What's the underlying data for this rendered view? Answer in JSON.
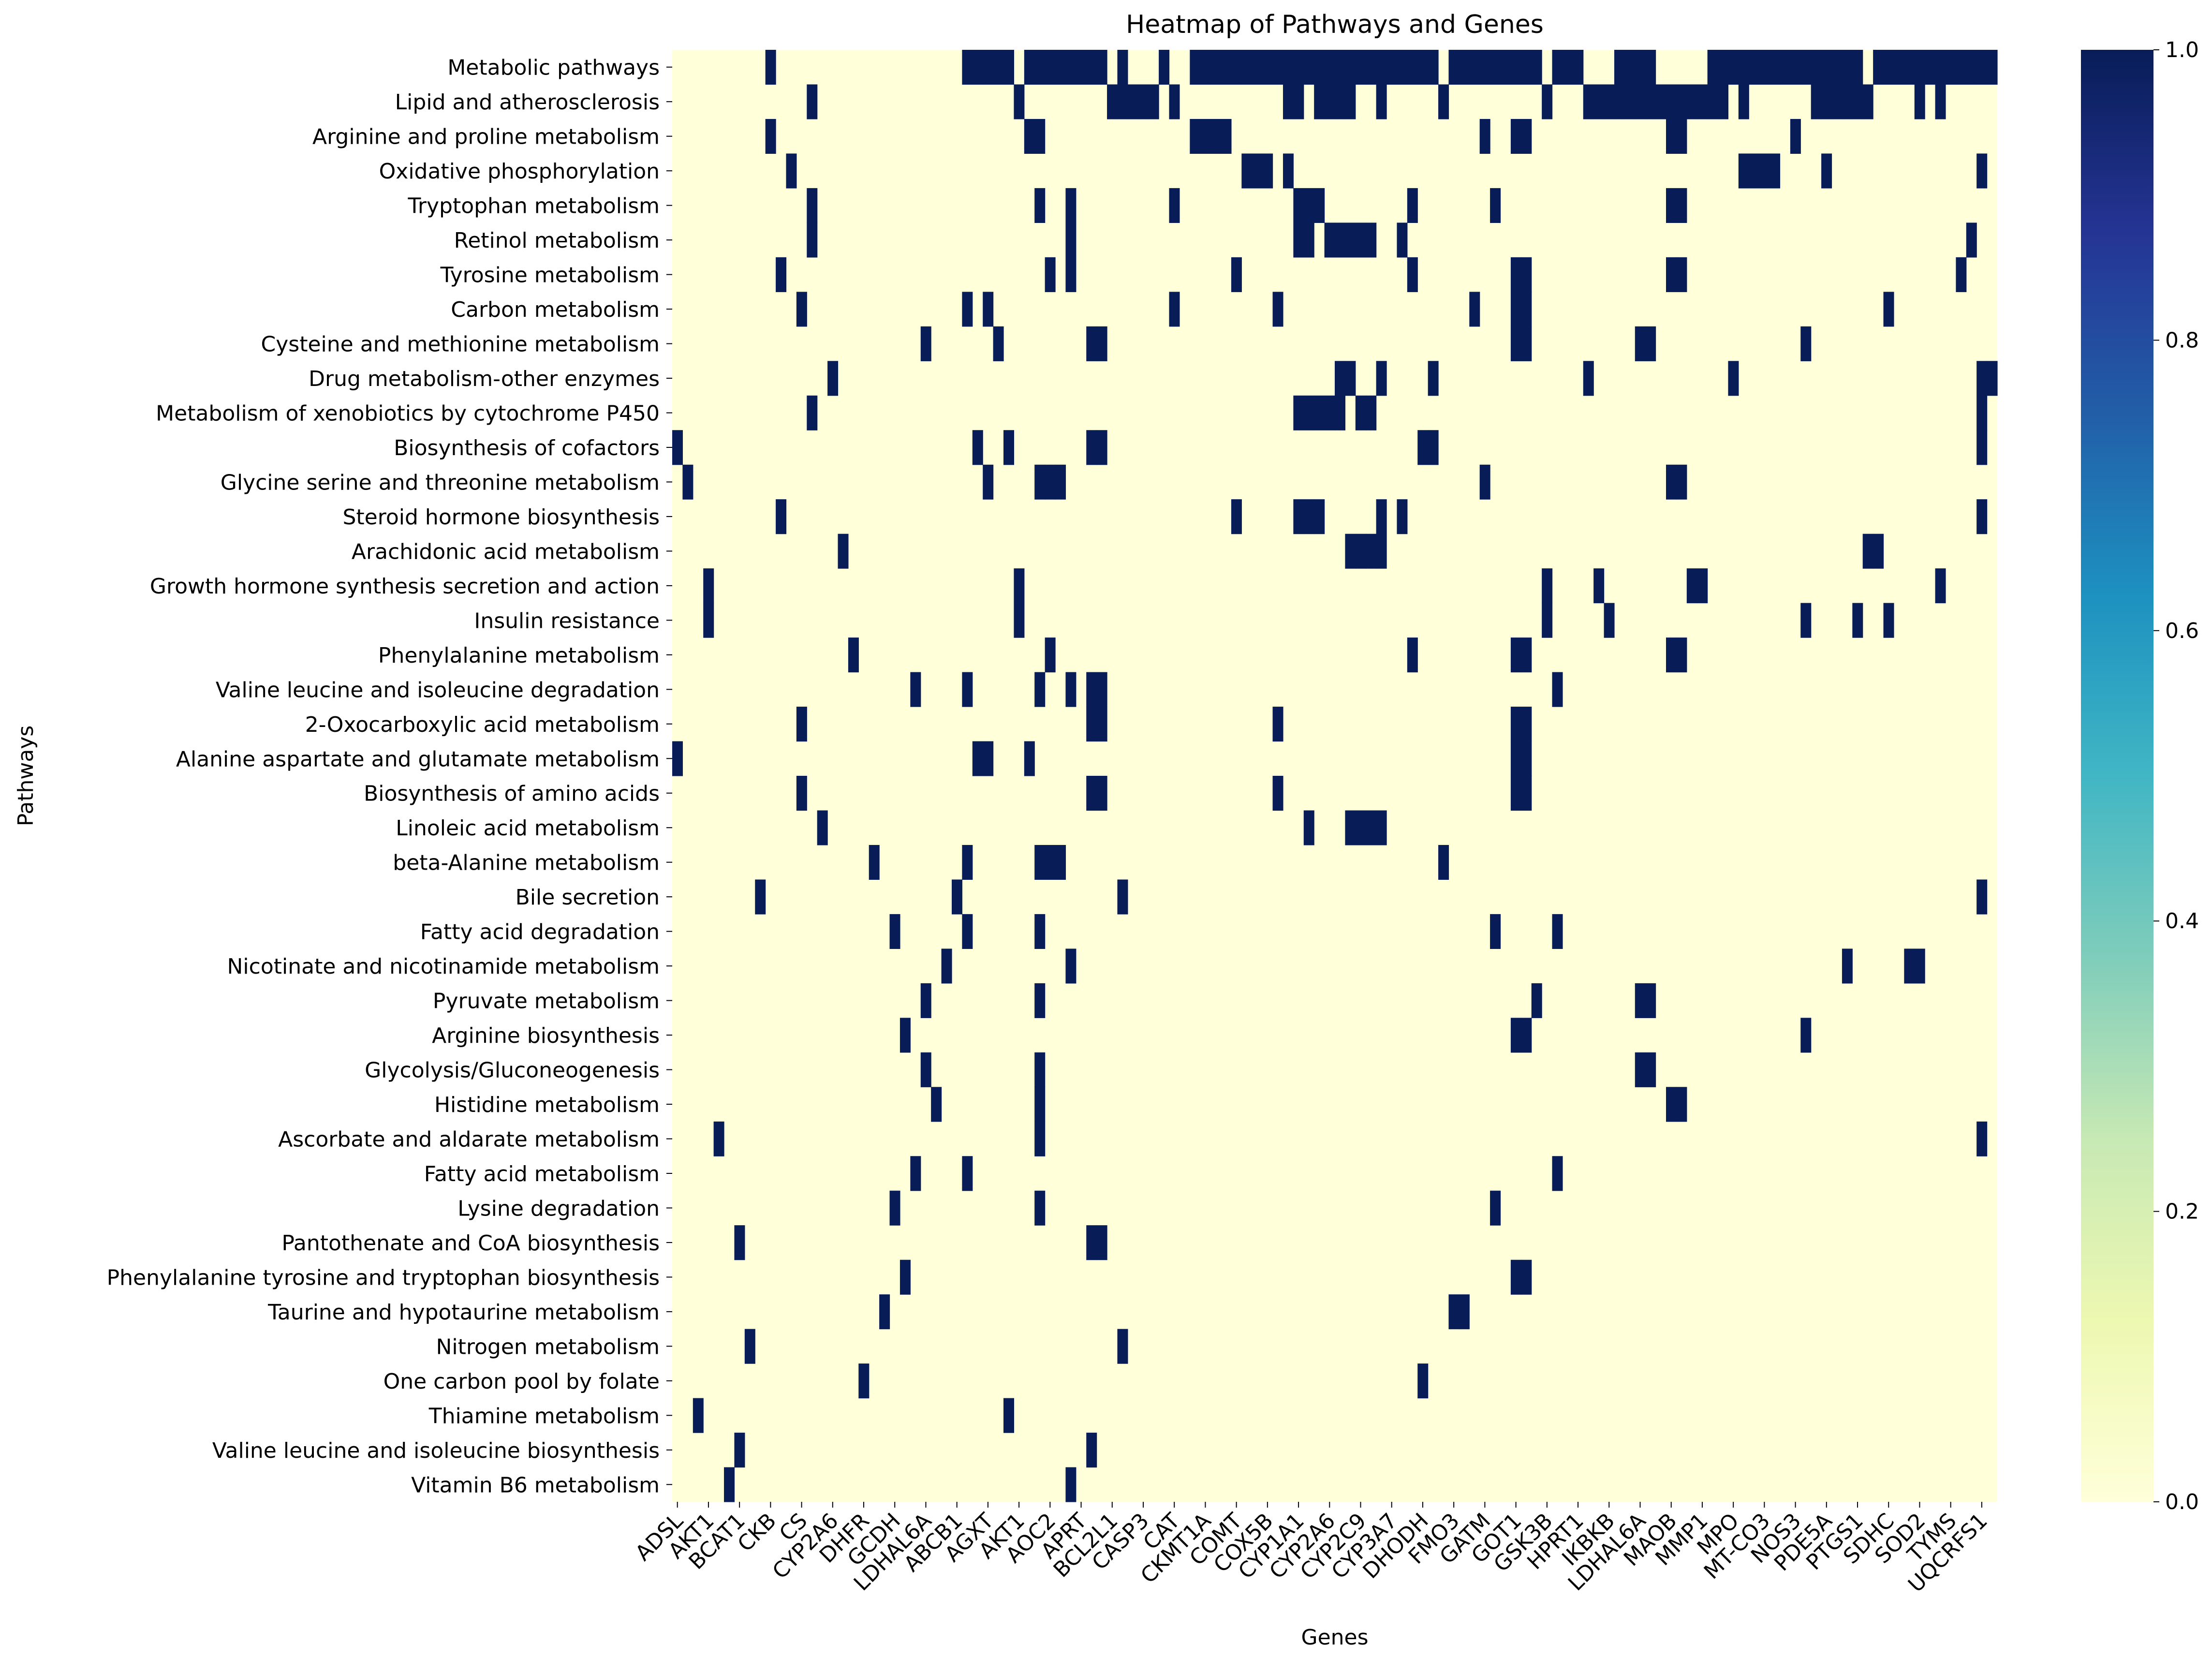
{
  "chart_data": {
    "type": "heatmap",
    "title": "Heatmap of Pathways and Genes",
    "xlabel": "Genes",
    "ylabel": "Pathways",
    "n_columns": 128,
    "value_range": [
      0.0,
      1.0
    ],
    "colormap": "YlGnBu",
    "colorbar_ticks": [
      "0.0",
      "0.2",
      "0.4",
      "0.6",
      "0.8",
      "1.0"
    ],
    "colorbar_stops": [
      "#ffffd9",
      "#edf8b1",
      "#c7e9b4",
      "#7fcdbb",
      "#41b6c4",
      "#1d91c0",
      "#225ea8",
      "#253494",
      "#081d58"
    ],
    "x_tick_labels": [
      {
        "label": "ADSL",
        "col": 0
      },
      {
        "label": "AKT1",
        "col": 3
      },
      {
        "label": "BCAT1",
        "col": 6
      },
      {
        "label": "CKB",
        "col": 9
      },
      {
        "label": "CS",
        "col": 12
      },
      {
        "label": "CYP2A6",
        "col": 15
      },
      {
        "label": "DHFR",
        "col": 18
      },
      {
        "label": "GCDH",
        "col": 21
      },
      {
        "label": "LDHAL6A",
        "col": 24
      },
      {
        "label": "ABCB1",
        "col": 27
      },
      {
        "label": "AGXT",
        "col": 30
      },
      {
        "label": "AKT1",
        "col": 33
      },
      {
        "label": "AOC2",
        "col": 36
      },
      {
        "label": "APRT",
        "col": 39
      },
      {
        "label": "BCL2L1",
        "col": 42
      },
      {
        "label": "CASP3",
        "col": 45
      },
      {
        "label": "CAT",
        "col": 48
      },
      {
        "label": "CKMT1A",
        "col": 51
      },
      {
        "label": "COMT",
        "col": 54
      },
      {
        "label": "COX5B",
        "col": 57
      },
      {
        "label": "CYP1A1",
        "col": 60
      },
      {
        "label": "CYP2A6",
        "col": 63
      },
      {
        "label": "CYP2C9",
        "col": 66
      },
      {
        "label": "CYP3A7",
        "col": 69
      },
      {
        "label": "DHODH",
        "col": 72
      },
      {
        "label": "FMO3",
        "col": 75
      },
      {
        "label": "GATM",
        "col": 78
      },
      {
        "label": "GOT1",
        "col": 81
      },
      {
        "label": "GSK3B",
        "col": 84
      },
      {
        "label": "HPRT1",
        "col": 87
      },
      {
        "label": "IKBKB",
        "col": 90
      },
      {
        "label": "LDHAL6A",
        "col": 93
      },
      {
        "label": "MAOB",
        "col": 96
      },
      {
        "label": "MMP1",
        "col": 99
      },
      {
        "label": "MPO",
        "col": 102
      },
      {
        "label": "MT-CO3",
        "col": 105
      },
      {
        "label": "NOS3",
        "col": 108
      },
      {
        "label": "PDE5A",
        "col": 111
      },
      {
        "label": "PTGS1",
        "col": 114
      },
      {
        "label": "SDHC",
        "col": 117
      },
      {
        "label": "SOD2",
        "col": 120
      },
      {
        "label": "TYMS",
        "col": 123
      },
      {
        "label": "UQCRFS1",
        "col": 126
      }
    ],
    "rows": [
      {
        "pathway": "Metabolic pathways",
        "cols": [
          9,
          28,
          29,
          30,
          31,
          32,
          34,
          35,
          36,
          37,
          38,
          39,
          40,
          41,
          43,
          47,
          50,
          51,
          52,
          53,
          54,
          55,
          56,
          57,
          58,
          59,
          60,
          61,
          62,
          63,
          64,
          65,
          66,
          67,
          68,
          69,
          70,
          71,
          72,
          73,
          75,
          76,
          77,
          78,
          79,
          80,
          81,
          82,
          83,
          85,
          86,
          87,
          91,
          92,
          93,
          94,
          100,
          101,
          102,
          103,
          104,
          105,
          106,
          107,
          108,
          109,
          110,
          111,
          112,
          113,
          114,
          116,
          117,
          118,
          119,
          120,
          121,
          122,
          123,
          124,
          125,
          126,
          127
        ]
      },
      {
        "pathway": "Lipid and atherosclerosis",
        "cols": [
          13,
          33,
          42,
          43,
          44,
          45,
          46,
          48,
          59,
          60,
          62,
          63,
          64,
          65,
          68,
          74,
          84,
          88,
          89,
          90,
          91,
          92,
          93,
          94,
          95,
          96,
          97,
          98,
          99,
          100,
          101,
          103,
          110,
          111,
          112,
          113,
          114,
          115,
          120,
          122
        ]
      },
      {
        "pathway": "Arginine and proline metabolism",
        "cols": [
          9,
          34,
          35,
          50,
          51,
          52,
          53,
          78,
          81,
          82,
          96,
          97,
          108
        ]
      },
      {
        "pathway": "Oxidative phosphorylation",
        "cols": [
          11,
          55,
          56,
          57,
          59,
          103,
          104,
          105,
          106,
          111,
          126
        ]
      },
      {
        "pathway": "Tryptophan metabolism",
        "cols": [
          13,
          35,
          38,
          48,
          60,
          61,
          62,
          71,
          79,
          96,
          97
        ]
      },
      {
        "pathway": "Retinol metabolism",
        "cols": [
          13,
          38,
          60,
          61,
          63,
          64,
          65,
          66,
          67,
          70,
          125
        ]
      },
      {
        "pathway": "Tyrosine metabolism",
        "cols": [
          10,
          36,
          38,
          54,
          71,
          81,
          82,
          96,
          97,
          124
        ]
      },
      {
        "pathway": "Carbon metabolism",
        "cols": [
          12,
          28,
          30,
          48,
          58,
          77,
          81,
          82,
          117
        ]
      },
      {
        "pathway": "Cysteine and methionine metabolism",
        "cols": [
          24,
          31,
          40,
          41,
          81,
          82,
          93,
          94,
          109
        ]
      },
      {
        "pathway": "Drug metabolism-other enzymes",
        "cols": [
          15,
          64,
          65,
          68,
          73,
          88,
          102,
          126,
          127
        ]
      },
      {
        "pathway": "Metabolism of xenobiotics by cytochrome P450",
        "cols": [
          13,
          60,
          61,
          62,
          63,
          64,
          66,
          67,
          126
        ]
      },
      {
        "pathway": "Biosynthesis of cofactors",
        "cols": [
          0,
          29,
          32,
          40,
          41,
          72,
          73,
          126
        ]
      },
      {
        "pathway": "Glycine serine and threonine metabolism",
        "cols": [
          1,
          30,
          35,
          36,
          37,
          78,
          96,
          97
        ]
      },
      {
        "pathway": "Steroid hormone biosynthesis",
        "cols": [
          10,
          54,
          60,
          61,
          62,
          68,
          70,
          126
        ]
      },
      {
        "pathway": "Arachidonic acid metabolism",
        "cols": [
          16,
          65,
          66,
          67,
          68,
          115,
          116
        ]
      },
      {
        "pathway": "Growth hormone synthesis secretion and action",
        "cols": [
          3,
          33,
          84,
          89,
          98,
          99,
          122
        ]
      },
      {
        "pathway": "Insulin resistance",
        "cols": [
          3,
          33,
          84,
          90,
          109,
          114,
          117
        ]
      },
      {
        "pathway": "Phenylalanine metabolism",
        "cols": [
          17,
          36,
          71,
          81,
          82,
          96,
          97
        ]
      },
      {
        "pathway": "Valine leucine and isoleucine degradation",
        "cols": [
          23,
          28,
          35,
          38,
          40,
          41,
          85
        ]
      },
      {
        "pathway": "2-Oxocarboxylic acid metabolism",
        "cols": [
          12,
          40,
          41,
          58,
          81,
          82
        ]
      },
      {
        "pathway": "Alanine aspartate and glutamate metabolism",
        "cols": [
          0,
          29,
          30,
          34,
          81,
          82
        ]
      },
      {
        "pathway": "Biosynthesis of amino acids",
        "cols": [
          12,
          40,
          41,
          58,
          81,
          82
        ]
      },
      {
        "pathway": "Linoleic acid metabolism",
        "cols": [
          14,
          61,
          65,
          66,
          67,
          68
        ]
      },
      {
        "pathway": "beta-Alanine metabolism",
        "cols": [
          19,
          28,
          35,
          36,
          37,
          74
        ]
      },
      {
        "pathway": "Bile secretion",
        "cols": [
          8,
          27,
          43,
          126
        ]
      },
      {
        "pathway": "Fatty acid degradation",
        "cols": [
          21,
          28,
          35,
          79,
          85
        ]
      },
      {
        "pathway": "Nicotinate and nicotinamide metabolism",
        "cols": [
          26,
          38,
          113,
          119,
          120
        ]
      },
      {
        "pathway": "Pyruvate metabolism",
        "cols": [
          24,
          35,
          83,
          93,
          94
        ]
      },
      {
        "pathway": "Arginine biosynthesis",
        "cols": [
          22,
          81,
          82,
          109
        ]
      },
      {
        "pathway": "Glycolysis/Gluconeogenesis",
        "cols": [
          24,
          35,
          93,
          94
        ]
      },
      {
        "pathway": "Histidine metabolism",
        "cols": [
          25,
          35,
          96,
          97
        ]
      },
      {
        "pathway": "Ascorbate and aldarate metabolism",
        "cols": [
          4,
          35,
          126
        ]
      },
      {
        "pathway": "Fatty acid metabolism",
        "cols": [
          23,
          28,
          85
        ]
      },
      {
        "pathway": "Lysine degradation",
        "cols": [
          21,
          35,
          79
        ]
      },
      {
        "pathway": "Pantothenate and CoA biosynthesis",
        "cols": [
          6,
          40,
          41
        ]
      },
      {
        "pathway": "Phenylalanine tyrosine and tryptophan biosynthesis",
        "cols": [
          22,
          81,
          82
        ]
      },
      {
        "pathway": "Taurine and hypotaurine metabolism",
        "cols": [
          20,
          75,
          76
        ]
      },
      {
        "pathway": "Nitrogen metabolism",
        "cols": [
          7,
          43
        ]
      },
      {
        "pathway": "One carbon pool by folate",
        "cols": [
          18,
          72
        ]
      },
      {
        "pathway": "Thiamine metabolism",
        "cols": [
          2,
          32
        ]
      },
      {
        "pathway": "Valine leucine and isoleucine biosynthesis",
        "cols": [
          6,
          40
        ]
      },
      {
        "pathway": "Vitamin B6 metabolism",
        "cols": [
          5,
          38
        ]
      }
    ]
  }
}
